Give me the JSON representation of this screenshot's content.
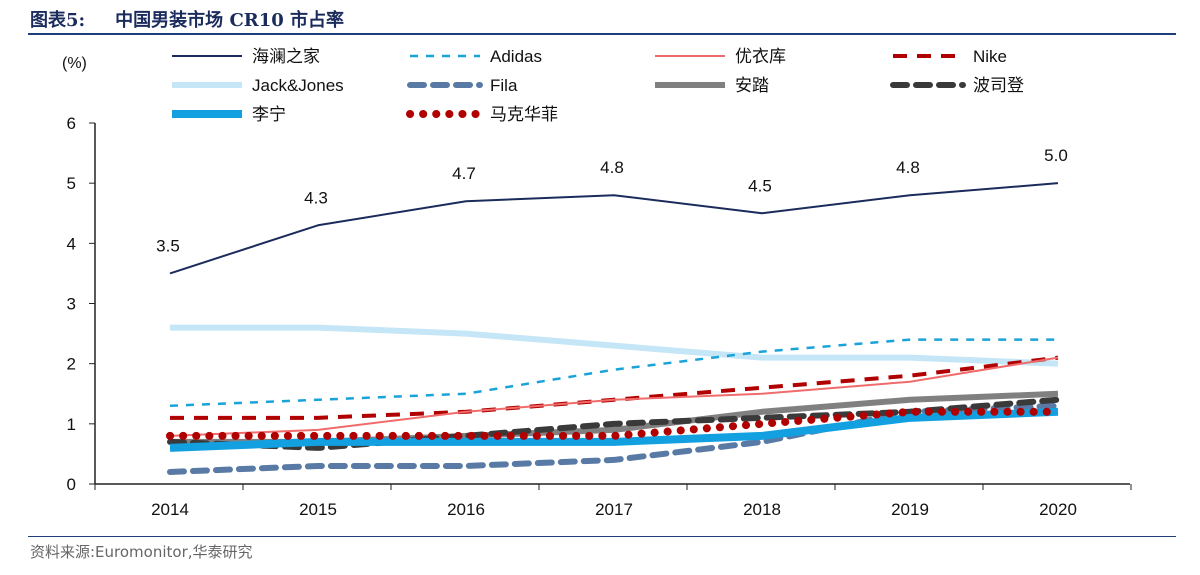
{
  "header": {
    "figure_no": "图表5:",
    "title": "中国男装市场 CR10 市占率"
  },
  "source": "资料来源:Euromonitor,华泰研究",
  "chart_data": {
    "type": "line",
    "title": "中国男装市场 CR10 市占率",
    "ylabel": "(%)",
    "ylim": [
      0,
      6
    ],
    "yticks": [
      0,
      1,
      2,
      3,
      4,
      5,
      6
    ],
    "categories": [
      "2014",
      "2015",
      "2016",
      "2017",
      "2018",
      "2019",
      "2020"
    ],
    "legend_placement": "top",
    "series": [
      {
        "name": "海澜之家",
        "values": [
          3.5,
          4.3,
          4.7,
          4.8,
          4.5,
          4.8,
          5.0
        ],
        "color": "#1b2c5c",
        "style": "solid",
        "labels": true
      },
      {
        "name": "Adidas",
        "values": [
          1.3,
          1.4,
          1.5,
          1.9,
          2.2,
          2.4,
          2.4
        ],
        "color": "#1aa3d9",
        "style": "dash-thin"
      },
      {
        "name": "优衣库",
        "values": [
          0.8,
          0.9,
          1.2,
          1.4,
          1.5,
          1.7,
          2.1
        ],
        "color": "#f06b6b",
        "style": "solid"
      },
      {
        "name": "Nike",
        "values": [
          1.1,
          1.1,
          1.2,
          1.4,
          1.6,
          1.8,
          2.1
        ],
        "color": "#b00000",
        "style": "dash"
      },
      {
        "name": "Jack&Jones",
        "values": [
          2.6,
          2.6,
          2.5,
          2.3,
          2.1,
          2.1,
          2.0
        ],
        "color": "#c5e6f6",
        "style": "solid-thick"
      },
      {
        "name": "Fila",
        "values": [
          0.2,
          0.3,
          0.3,
          0.4,
          0.7,
          1.2,
          1.3
        ],
        "color": "#5a7aa6",
        "style": "dash-thick"
      },
      {
        "name": "安踏",
        "values": [
          0.7,
          0.7,
          0.8,
          0.9,
          1.2,
          1.4,
          1.5
        ],
        "color": "#808080",
        "style": "solid-thick"
      },
      {
        "name": "波司登",
        "values": [
          0.7,
          0.6,
          0.8,
          1.0,
          1.1,
          1.2,
          1.4
        ],
        "color": "#3a3a3a",
        "style": "dash-thick"
      },
      {
        "name": "李宁",
        "values": [
          0.6,
          0.7,
          0.7,
          0.7,
          0.8,
          1.1,
          1.2
        ],
        "color": "#12a0e0",
        "style": "solid-xthick"
      },
      {
        "name": "马克华菲",
        "values": [
          0.8,
          0.8,
          0.8,
          0.8,
          1.0,
          1.2,
          1.2
        ],
        "color": "#b00000",
        "style": "dot"
      }
    ]
  }
}
